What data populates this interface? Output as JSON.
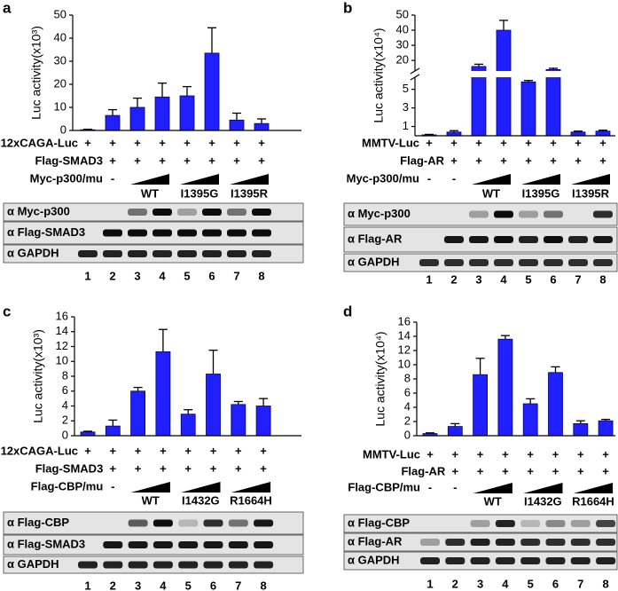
{
  "chart_data": [
    {
      "type": "bar",
      "panel": "a",
      "y_label": "Luc activity(x10³)",
      "categories": [
        "1",
        "2",
        "3",
        "4",
        "5",
        "6",
        "7",
        "8"
      ],
      "values": [
        0.3,
        6.5,
        10,
        14.5,
        15,
        33.5,
        4.5,
        3
      ],
      "errors": [
        0.2,
        2.5,
        4,
        6,
        4,
        11,
        3,
        2
      ],
      "color": "#1f1fff",
      "ylim": [
        0,
        50
      ],
      "yticks": [
        0,
        10,
        20,
        30,
        40,
        50
      ],
      "treatments": [
        {
          "label": "12xCAGA-Luc",
          "marks": [
            "+",
            "+",
            "+",
            "+",
            "+",
            "+",
            "+",
            "+"
          ]
        },
        {
          "label": "Flag-SMAD3",
          "marks": [
            null,
            "+",
            "+",
            "+",
            "+",
            "+",
            "+",
            "+"
          ]
        },
        {
          "label": "Myc-p300/mu",
          "marks": [
            null,
            "-",
            null,
            null,
            null,
            null,
            null,
            null
          ]
        }
      ],
      "groups": [
        "WT",
        "I1395G",
        "I1395R"
      ],
      "blots": [
        "α Myc-p300",
        "α Flag-SMAD3",
        "α GAPDH"
      ]
    },
    {
      "type": "bar",
      "panel": "b",
      "y_label": "Luc activity(x10⁴)",
      "categories": [
        "1",
        "2",
        "3",
        "4",
        "5",
        "6",
        "7",
        "8"
      ],
      "values": [
        0.1,
        0.4,
        16,
        40,
        5.8,
        14,
        0.4,
        0.5
      ],
      "errors": [
        0.05,
        0.15,
        1.5,
        6.5,
        0.15,
        0.8,
        0.1,
        0.1
      ],
      "color": "#1f1fff",
      "ylim": [
        0,
        50
      ],
      "ybreak": [
        6.3,
        13
      ],
      "yticks": [
        1,
        3,
        5,
        20,
        30,
        40,
        50
      ],
      "treatments": [
        {
          "label": "MMTV-Luc",
          "marks": [
            "+",
            "+",
            "+",
            "+",
            "+",
            "+",
            "+",
            "+"
          ]
        },
        {
          "label": "Flag-AR",
          "marks": [
            null,
            "+",
            "+",
            "+",
            "+",
            "+",
            "+",
            "+"
          ]
        },
        {
          "label": "Myc-p300/mu",
          "marks": [
            "-",
            "-",
            null,
            null,
            null,
            null,
            null,
            null
          ]
        }
      ],
      "groups": [
        "WT",
        "I1395G",
        "I1395R"
      ],
      "blots": [
        "α Myc-p300",
        "α Flag-AR",
        "α GAPDH"
      ]
    },
    {
      "type": "bar",
      "panel": "c",
      "y_label": "Luc activity(x10³)",
      "categories": [
        "1",
        "2",
        "3",
        "4",
        "5",
        "6",
        "7",
        "8"
      ],
      "values": [
        0.5,
        1.3,
        6,
        11.3,
        2.9,
        8.3,
        4.2,
        4
      ],
      "errors": [
        0.1,
        0.8,
        0.5,
        3,
        0.6,
        3.2,
        0.4,
        1
      ],
      "color": "#1f1fff",
      "ylim": [
        0,
        16
      ],
      "yticks": [
        0,
        2,
        4,
        6,
        8,
        10,
        12,
        14,
        16
      ],
      "treatments": [
        {
          "label": "12xCAGA-Luc",
          "marks": [
            "+",
            "+",
            "+",
            "+",
            "+",
            "+",
            "+",
            "+"
          ]
        },
        {
          "label": "Flag-SMAD3",
          "marks": [
            null,
            "+",
            "+",
            "+",
            "+",
            "+",
            "+",
            "+"
          ]
        },
        {
          "label": "Flag-CBP/mu",
          "marks": [
            null,
            "-",
            null,
            null,
            null,
            null,
            null,
            null
          ]
        }
      ],
      "groups": [
        "WT",
        "I1432G",
        "R1664H"
      ],
      "blots": [
        "α Flag-CBP",
        "α Flag-SMAD3",
        "α GAPDH"
      ]
    },
    {
      "type": "bar",
      "panel": "d",
      "y_label": "Luc activity(x10⁴)",
      "categories": [
        "1",
        "2",
        "3",
        "4",
        "5",
        "6",
        "7",
        "8"
      ],
      "values": [
        0.3,
        1.3,
        8.6,
        13.6,
        4.5,
        8.9,
        1.7,
        2.1
      ],
      "errors": [
        0.1,
        0.4,
        2.3,
        0.5,
        0.7,
        0.8,
        0.4,
        0.2
      ],
      "color": "#1f1fff",
      "ylim": [
        0,
        16
      ],
      "yticks": [
        0,
        2,
        4,
        6,
        8,
        10,
        12,
        14,
        16
      ],
      "treatments": [
        {
          "label": "MMTV-Luc",
          "marks": [
            "+",
            "+",
            "+",
            "+",
            "+",
            "+",
            "+",
            "+"
          ]
        },
        {
          "label": "Flag-AR",
          "marks": [
            null,
            "+",
            "+",
            "+",
            "+",
            "+",
            "+",
            "+"
          ]
        },
        {
          "label": "Flag-CBP/mu",
          "marks": [
            "-",
            "-",
            null,
            null,
            null,
            null,
            null,
            null
          ]
        }
      ],
      "groups": [
        "WT",
        "I1432G",
        "R1664H"
      ],
      "blots": [
        "α Flag-CBP",
        "α Flag-AR",
        "α GAPDH"
      ]
    }
  ]
}
